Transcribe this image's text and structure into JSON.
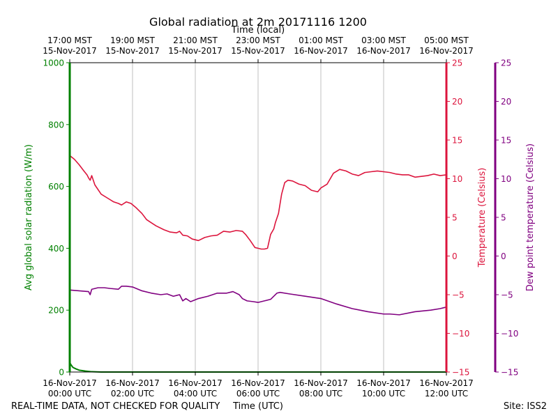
{
  "chart_data": {
    "type": "line",
    "title": "Global radiation at 2m 20171116 1200",
    "top_axis_label": "Time (local)",
    "xlabel": "Time (UTC)",
    "x_ticks_utc": [
      [
        "16-Nov-2017",
        "00:00 UTC"
      ],
      [
        "16-Nov-2017",
        "02:00 UTC"
      ],
      [
        "16-Nov-2017",
        "04:00 UTC"
      ],
      [
        "16-Nov-2017",
        "06:00 UTC"
      ],
      [
        "16-Nov-2017",
        "08:00 UTC"
      ],
      [
        "16-Nov-2017",
        "10:00 UTC"
      ],
      [
        "16-Nov-2017",
        "12:00 UTC"
      ]
    ],
    "x_ticks_local": [
      [
        "17:00 MST",
        "15-Nov-2017"
      ],
      [
        "19:00 MST",
        "15-Nov-2017"
      ],
      [
        "21:00 MST",
        "15-Nov-2017"
      ],
      [
        "23:00 MST",
        "15-Nov-2017"
      ],
      [
        "01:00 MST",
        "16-Nov-2017"
      ],
      [
        "03:00 MST",
        "16-Nov-2017"
      ],
      [
        "05:00 MST",
        "16-Nov-2017"
      ]
    ],
    "x_tick_hours": [
      0,
      2,
      4,
      6,
      8,
      10,
      12
    ],
    "xlim_hours_utc": [
      0,
      12
    ],
    "y_left": {
      "label": "Avg global solar radiation (W/m)",
      "lim": [
        0,
        1000
      ],
      "ticks": [
        0,
        200,
        400,
        600,
        800,
        1000
      ],
      "color": "#008000"
    },
    "y_right1": {
      "label": "Temperature (Celsius)",
      "lim": [
        -15,
        25
      ],
      "ticks": [
        -15,
        -10,
        -5,
        0,
        5,
        10,
        15,
        20,
        25
      ],
      "tick_labels": [
        "−15",
        "−10",
        "−5",
        "0",
        "5",
        "10",
        "15",
        "20",
        "25"
      ],
      "color": "#dc143c"
    },
    "y_right2": {
      "label": "Dew point temperature (Celsius)",
      "lim": [
        -15,
        25
      ],
      "ticks": [
        -15,
        -10,
        -5,
        0,
        5,
        10,
        15,
        20,
        25
      ],
      "tick_labels": [
        "−15",
        "−10",
        "−5",
        "0",
        "5",
        "10",
        "15",
        "20",
        "25"
      ],
      "color": "#800080"
    },
    "series": [
      {
        "name": "Avg global solar radiation",
        "axis": "left",
        "color": "#008000",
        "x": [
          0,
          0.05,
          0.1,
          0.2,
          0.3,
          0.5,
          0.7,
          1.0,
          12
        ],
        "values": [
          30,
          22,
          15,
          10,
          6,
          3,
          1,
          0,
          0
        ]
      },
      {
        "name": "Temperature",
        "axis": "right1",
        "color": "#dc143c",
        "x": [
          0,
          0.15,
          0.3,
          0.45,
          0.55,
          0.6,
          0.65,
          0.7,
          0.8,
          1.0,
          1.2,
          1.4,
          1.55,
          1.65,
          1.8,
          1.95,
          2.1,
          2.3,
          2.45,
          2.6,
          2.75,
          3.0,
          3.2,
          3.4,
          3.5,
          3.6,
          3.75,
          3.9,
          4.1,
          4.3,
          4.5,
          4.7,
          4.9,
          5.1,
          5.3,
          5.5,
          5.6,
          5.75,
          5.9,
          6.0,
          6.1,
          6.2,
          6.3,
          6.4,
          6.5,
          6.55,
          6.65,
          6.75,
          6.85,
          6.95,
          7.1,
          7.3,
          7.5,
          7.7,
          7.9,
          8.0,
          8.2,
          8.4,
          8.6,
          8.8,
          9.0,
          9.2,
          9.4,
          9.6,
          9.8,
          10.0,
          10.2,
          10.4,
          10.6,
          10.8,
          11.0,
          11.2,
          11.4,
          11.6,
          11.8,
          12.0
        ],
        "values": [
          13.0,
          12.5,
          11.8,
          11.0,
          10.5,
          10.1,
          9.8,
          10.4,
          9.2,
          8.0,
          7.5,
          7.0,
          6.8,
          6.6,
          7.0,
          6.8,
          6.3,
          5.5,
          4.7,
          4.3,
          3.9,
          3.4,
          3.1,
          3.0,
          3.2,
          2.7,
          2.6,
          2.2,
          2.0,
          2.4,
          2.6,
          2.7,
          3.2,
          3.1,
          3.3,
          3.2,
          2.8,
          2.0,
          1.1,
          1.0,
          0.9,
          0.9,
          1.0,
          2.8,
          3.5,
          4.3,
          5.5,
          8.0,
          9.5,
          9.8,
          9.7,
          9.3,
          9.1,
          8.5,
          8.3,
          8.8,
          9.3,
          10.7,
          11.2,
          11.0,
          10.6,
          10.4,
          10.8,
          10.9,
          11.0,
          10.9,
          10.8,
          10.6,
          10.5,
          10.5,
          10.2,
          10.3,
          10.4,
          10.6,
          10.4,
          10.5
        ]
      },
      {
        "name": "Dew point temperature",
        "axis": "right2",
        "color": "#800080",
        "x": [
          0,
          0.3,
          0.6,
          0.65,
          0.7,
          0.9,
          1.1,
          1.3,
          1.55,
          1.65,
          1.8,
          2.0,
          2.3,
          2.6,
          2.9,
          3.1,
          3.3,
          3.5,
          3.6,
          3.7,
          3.85,
          4.1,
          4.4,
          4.7,
          5.0,
          5.2,
          5.4,
          5.5,
          5.65,
          5.85,
          6.0,
          6.2,
          6.4,
          6.6,
          6.7,
          7.0,
          7.5,
          8.0,
          8.5,
          9.0,
          9.5,
          10.0,
          10.2,
          10.5,
          11.0,
          11.5,
          11.8,
          12.0
        ],
        "values": [
          -4.4,
          -4.5,
          -4.6,
          -5.0,
          -4.3,
          -4.1,
          -4.1,
          -4.2,
          -4.3,
          -3.9,
          -3.9,
          -4.0,
          -4.5,
          -4.8,
          -5.0,
          -4.9,
          -5.2,
          -5.0,
          -5.8,
          -5.5,
          -5.9,
          -5.5,
          -5.2,
          -4.8,
          -4.8,
          -4.6,
          -5.0,
          -5.5,
          -5.8,
          -5.9,
          -6.0,
          -5.8,
          -5.6,
          -4.8,
          -4.7,
          -4.9,
          -5.2,
          -5.5,
          -6.2,
          -6.8,
          -7.2,
          -7.5,
          -7.5,
          -7.6,
          -7.2,
          -7.0,
          -6.8,
          -6.6
        ]
      }
    ],
    "footer_left": "REAL-TIME DATA, NOT CHECKED FOR QUALITY",
    "footer_site": "Site: ISS2"
  }
}
